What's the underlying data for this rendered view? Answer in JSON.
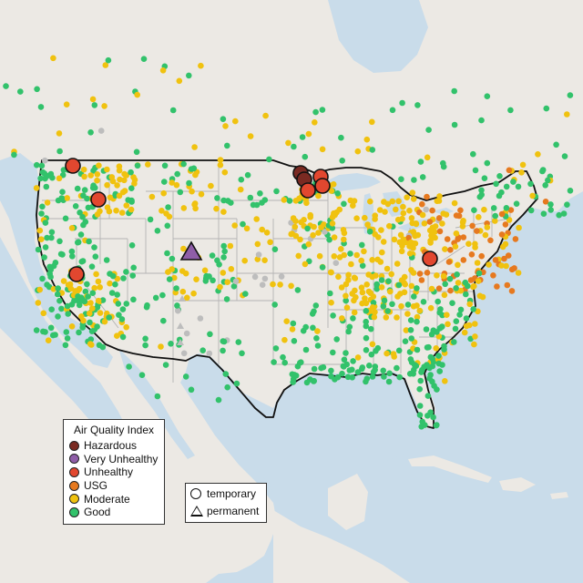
{
  "colors": {
    "ocean": "#c9dcea",
    "land": "#ece9e4",
    "lake": "#c9dcea",
    "us_border": "#111111",
    "state_lines": "#b4b4b4",
    "Hazardous": "#7a2a22",
    "Very Unhealthy": "#8f5ea8",
    "Unhealthy": "#e2472f",
    "USG": "#e6791f",
    "Moderate": "#f0c20f",
    "Good": "#32c26b",
    "NoData": "#bdbdbd"
  },
  "legend_aqi": {
    "title": "Air Quality Index",
    "items": [
      {
        "label": "Hazardous",
        "color": "#7a2a22"
      },
      {
        "label": "Very Unhealthy",
        "color": "#8f5ea8"
      },
      {
        "label": "Unhealthy",
        "color": "#e2472f"
      },
      {
        "label": "USG",
        "color": "#e6791f"
      },
      {
        "label": "Moderate",
        "color": "#f0c20f"
      },
      {
        "label": "Good",
        "color": "#32c26b"
      }
    ]
  },
  "legend_type": {
    "items": [
      {
        "label": "temporary",
        "shape": "circle"
      },
      {
        "label": "permanent",
        "shape": "triangle"
      }
    ]
  },
  "large_markers": [
    {
      "category": "Unhealthy",
      "shape": "circle",
      "region": "northern Washington"
    },
    {
      "category": "Unhealthy",
      "shape": "circle",
      "region": "Idaho panhandle"
    },
    {
      "category": "Unhealthy",
      "shape": "circle",
      "region": "northern California"
    },
    {
      "category": "Very Unhealthy",
      "shape": "triangle",
      "region": "Wyoming"
    },
    {
      "category": "Hazardous",
      "shape": "circle",
      "region": "northern Minnesota"
    },
    {
      "category": "Hazardous",
      "shape": "circle",
      "region": "northern Minnesota"
    },
    {
      "category": "Unhealthy",
      "shape": "circle",
      "region": "northern Minnesota"
    },
    {
      "category": "Unhealthy",
      "shape": "circle",
      "region": "northern Minnesota"
    },
    {
      "category": "Unhealthy",
      "shape": "circle",
      "region": "northern Minnesota"
    },
    {
      "category": "Unhealthy",
      "shape": "circle",
      "region": "Ohio"
    }
  ]
}
